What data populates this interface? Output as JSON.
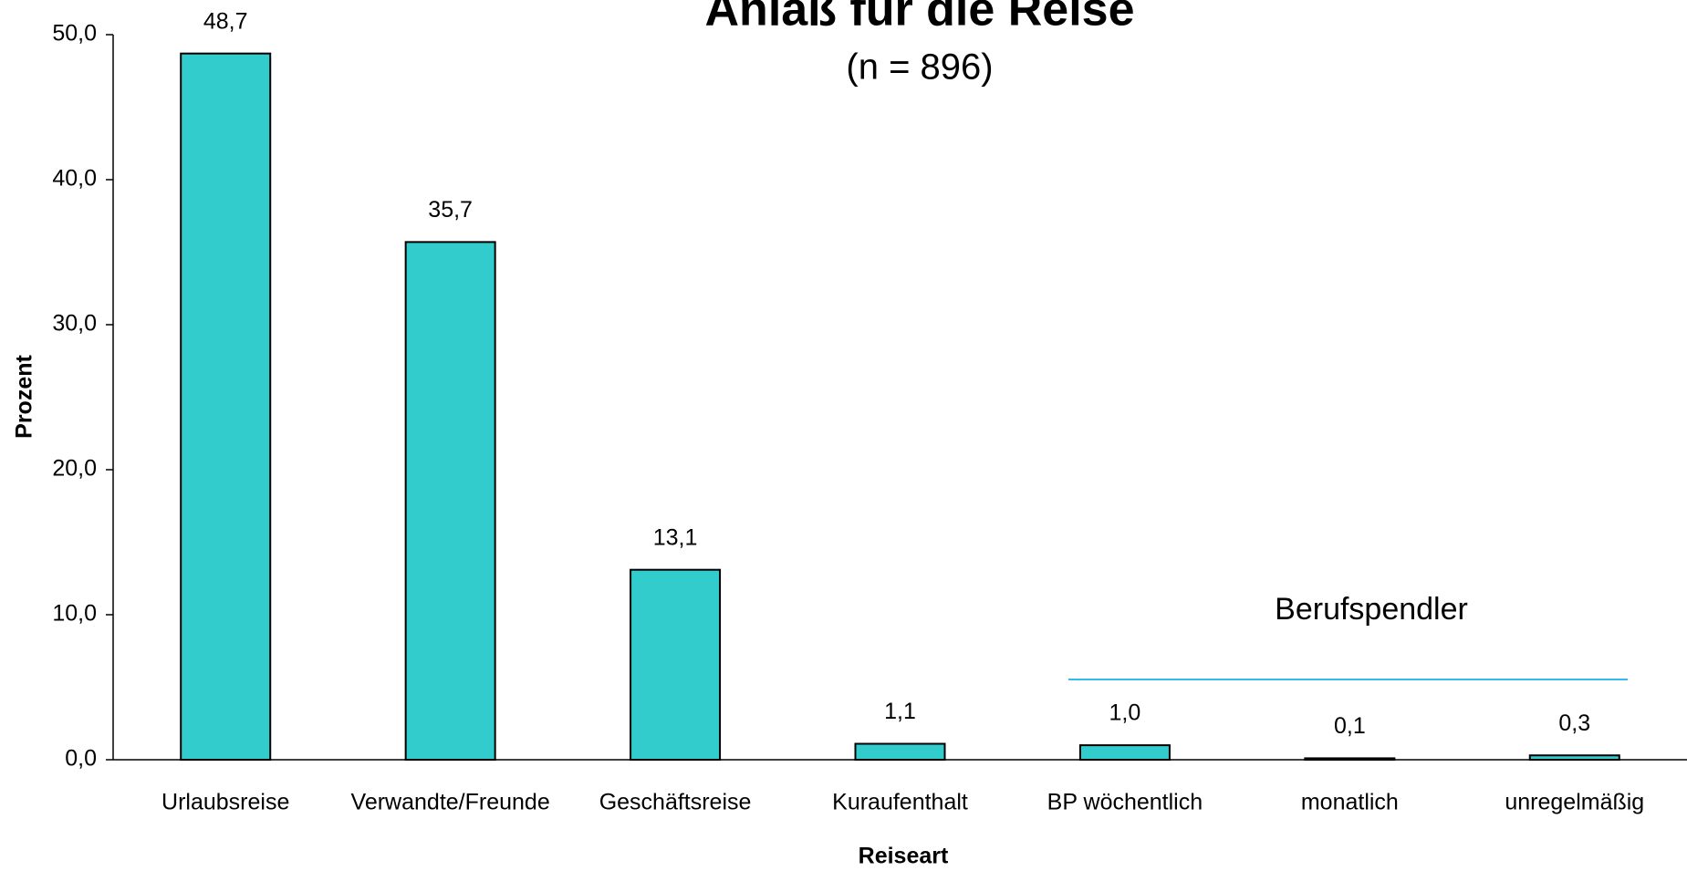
{
  "chart_data": {
    "type": "bar",
    "title": "Anlaß für die Reise",
    "subtitle": "(n = 896)",
    "x_label": "Reiseart",
    "y_label": "Prozent",
    "annotation": "Berufspendler",
    "categories": [
      "Urlaubsreise",
      "Verwandte/Freunde",
      "Geschäftsreise",
      "Kuraufenthalt",
      "BP wöchentlich",
      "monatlich",
      "unregelmäßig"
    ],
    "values": [
      48.7,
      35.7,
      13.1,
      1.1,
      1.0,
      0.1,
      0.3
    ],
    "value_labels": [
      "48,7",
      "35,7",
      "13,1",
      "1,1",
      "1,0",
      "0,1",
      "0,3"
    ],
    "color": "#33cccc",
    "ylim": [
      0,
      50
    ],
    "yticks": [
      {
        "value": 0,
        "label": "0,0"
      },
      {
        "value": 10,
        "label": "10,0"
      },
      {
        "value": 20,
        "label": "20,0"
      },
      {
        "value": 30,
        "label": "30,0"
      },
      {
        "value": 40,
        "label": "40,0"
      },
      {
        "value": 50,
        "label": "50,0"
      }
    ]
  }
}
